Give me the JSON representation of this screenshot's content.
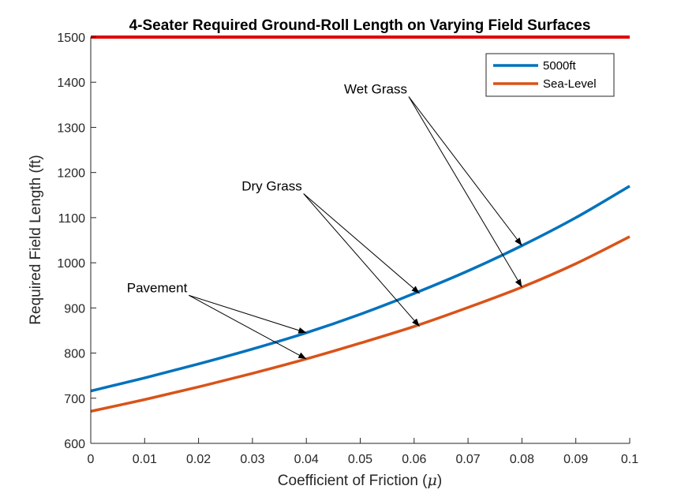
{
  "chart_data": {
    "type": "line",
    "title": "4-Seater Required Ground-Roll Length on Varying Field Surfaces",
    "xlabel": "Coefficient of Friction (μ)",
    "xlabel_prefix": "Coefficient of Friction (",
    "xlabel_symbol": "μ",
    "xlabel_suffix": ")",
    "ylabel": "Required Field Length (ft)",
    "xlim": [
      0,
      0.1
    ],
    "ylim": [
      600,
      1500
    ],
    "xticks": [
      0,
      0.01,
      0.02,
      0.03,
      0.04,
      0.05,
      0.06,
      0.07,
      0.08,
      0.09,
      0.1
    ],
    "xtick_labels": [
      "0",
      "0.01",
      "0.02",
      "0.03",
      "0.04",
      "0.05",
      "0.06",
      "0.07",
      "0.08",
      "0.09",
      "0.1"
    ],
    "yticks": [
      600,
      700,
      800,
      900,
      1000,
      1100,
      1200,
      1300,
      1400,
      1500
    ],
    "ytick_labels": [
      "600",
      "700",
      "800",
      "900",
      "1000",
      "1100",
      "1200",
      "1300",
      "1400",
      "1500"
    ],
    "grid": false,
    "legend_position": "top-right",
    "x": [
      0,
      0.01,
      0.02,
      0.03,
      0.04,
      0.05,
      0.06,
      0.07,
      0.08,
      0.09,
      0.1
    ],
    "series": [
      {
        "name": "5000ft",
        "color": "#0072BD",
        "values": [
          716,
          745,
          776,
          809,
          845,
          886,
          932,
          982,
          1038,
          1100,
          1170
        ]
      },
      {
        "name": "Sea-Level",
        "color": "#D95319",
        "values": [
          671,
          697,
          725,
          755,
          787,
          822,
          859,
          901,
          946,
          998,
          1058
        ]
      }
    ],
    "reference_line": {
      "y": 1500,
      "color": "#E00000"
    },
    "annotations": [
      {
        "text": "Pavement",
        "label_x": 0.0067,
        "label_y": 935,
        "targets": [
          [
            0.04,
            845
          ],
          [
            0.04,
            787
          ]
        ]
      },
      {
        "text": "Dry Grass",
        "label_x": 0.028,
        "label_y": 1160,
        "targets": [
          [
            0.061,
            932
          ],
          [
            0.061,
            859
          ]
        ]
      },
      {
        "text": "Wet Grass",
        "label_x": 0.047,
        "label_y": 1375,
        "targets": [
          [
            0.08,
            1038
          ],
          [
            0.08,
            946
          ]
        ]
      }
    ]
  }
}
